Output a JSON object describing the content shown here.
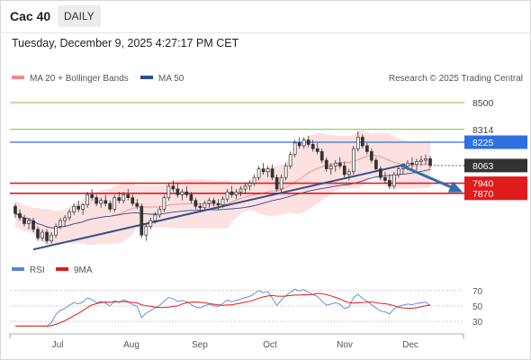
{
  "header": {
    "title": "Cac 40",
    "period": "DAILY",
    "timestamp": "Tuesday, December 9, 2025 4:27:17 PM CET"
  },
  "chart_data": {
    "type": "candlestick",
    "price": {
      "legend": [
        {
          "label": "MA 20 + Bollinger Bands",
          "color": "#f08a8a"
        },
        {
          "label": "MA 50",
          "color": "#2f4f8f"
        }
      ],
      "credit": "Research © 2025 Trading Central",
      "x_months": [
        "Jul",
        "Aug",
        "Sep",
        "Oct",
        "Nov",
        "Dec"
      ],
      "levels": [
        {
          "label": "8500",
          "value": 8500,
          "style": "resistance",
          "color": "#7bbf3f"
        },
        {
          "label": "8314",
          "value": 8314,
          "style": "resistance",
          "color": "#7bbf3f"
        },
        {
          "label": "8225",
          "value": 8225,
          "style": "pivot",
          "color": "#2f6fe0"
        },
        {
          "label": "8063",
          "value": 8063,
          "style": "last",
          "color": "#333333"
        },
        {
          "label": "7940",
          "value": 7940,
          "style": "support",
          "color": "#e01b1b"
        },
        {
          "label": "7870",
          "value": 7870,
          "style": "support",
          "color": "#e01b1b"
        }
      ],
      "trend_line": [
        [
          0,
          7480
        ],
        [
          94,
          8070
        ]
      ],
      "forecast_arrow": [
        [
          93,
          8063
        ],
        [
          100,
          7900
        ]
      ],
      "ohlc": [
        [
          7780,
          7800,
          7700,
          7730
        ],
        [
          7730,
          7760,
          7680,
          7700
        ],
        [
          7700,
          7720,
          7640,
          7660
        ],
        [
          7660,
          7700,
          7620,
          7680
        ],
        [
          7680,
          7700,
          7600,
          7620
        ],
        [
          7620,
          7640,
          7540,
          7560
        ],
        [
          7560,
          7620,
          7540,
          7600
        ],
        [
          7600,
          7620,
          7520,
          7540
        ],
        [
          7540,
          7600,
          7520,
          7580
        ],
        [
          7580,
          7660,
          7560,
          7640
        ],
        [
          7640,
          7700,
          7620,
          7680
        ],
        [
          7680,
          7720,
          7640,
          7700
        ],
        [
          7700,
          7760,
          7680,
          7740
        ],
        [
          7740,
          7800,
          7720,
          7780
        ],
        [
          7780,
          7820,
          7740,
          7760
        ],
        [
          7760,
          7800,
          7720,
          7790
        ],
        [
          7790,
          7880,
          7770,
          7860
        ],
        [
          7860,
          7900,
          7820,
          7840
        ],
        [
          7840,
          7860,
          7780,
          7800
        ],
        [
          7800,
          7840,
          7770,
          7820
        ],
        [
          7820,
          7860,
          7780,
          7800
        ],
        [
          7800,
          7820,
          7740,
          7760
        ],
        [
          7760,
          7860,
          7740,
          7840
        ],
        [
          7840,
          7880,
          7800,
          7820
        ],
        [
          7820,
          7880,
          7800,
          7860
        ],
        [
          7860,
          7900,
          7820,
          7840
        ],
        [
          7840,
          7860,
          7780,
          7800
        ],
        [
          7800,
          7830,
          7760,
          7780
        ],
        [
          7780,
          7800,
          7560,
          7580
        ],
        [
          7580,
          7660,
          7540,
          7640
        ],
        [
          7640,
          7700,
          7620,
          7680
        ],
        [
          7680,
          7740,
          7660,
          7720
        ],
        [
          7720,
          7780,
          7700,
          7760
        ],
        [
          7760,
          7860,
          7740,
          7840
        ],
        [
          7840,
          7940,
          7820,
          7920
        ],
        [
          7920,
          7960,
          7880,
          7900
        ],
        [
          7900,
          7940,
          7840,
          7860
        ],
        [
          7860,
          7900,
          7820,
          7880
        ],
        [
          7880,
          7920,
          7840,
          7860
        ],
        [
          7860,
          7880,
          7800,
          7820
        ],
        [
          7820,
          7840,
          7760,
          7780
        ],
        [
          7780,
          7800,
          7740,
          7770
        ],
        [
          7770,
          7820,
          7750,
          7800
        ],
        [
          7800,
          7840,
          7770,
          7820
        ],
        [
          7820,
          7840,
          7780,
          7800
        ],
        [
          7800,
          7830,
          7760,
          7790
        ],
        [
          7790,
          7850,
          7770,
          7830
        ],
        [
          7830,
          7900,
          7810,
          7880
        ],
        [
          7880,
          7920,
          7840,
          7860
        ],
        [
          7860,
          7900,
          7830,
          7880
        ],
        [
          7880,
          7920,
          7850,
          7900
        ],
        [
          7900,
          7940,
          7870,
          7920
        ],
        [
          7920,
          7960,
          7890,
          7940
        ],
        [
          7940,
          8000,
          7920,
          7980
        ],
        [
          7980,
          8060,
          7960,
          8040
        ],
        [
          8040,
          8080,
          8000,
          8020
        ],
        [
          8020,
          8060,
          7980,
          8040
        ],
        [
          8040,
          8070,
          7960,
          7980
        ],
        [
          7980,
          8000,
          7880,
          7900
        ],
        [
          7900,
          8000,
          7880,
          7980
        ],
        [
          7980,
          8080,
          7960,
          8060
        ],
        [
          8060,
          8160,
          8040,
          8140
        ],
        [
          8140,
          8240,
          8120,
          8220
        ],
        [
          8220,
          8260,
          8180,
          8200
        ],
        [
          8200,
          8260,
          8180,
          8240
        ],
        [
          8240,
          8270,
          8190,
          8210
        ],
        [
          8210,
          8240,
          8160,
          8180
        ],
        [
          8180,
          8220,
          8140,
          8160
        ],
        [
          8160,
          8180,
          8080,
          8100
        ],
        [
          8100,
          8120,
          8020,
          8040
        ],
        [
          8040,
          8080,
          8000,
          8060
        ],
        [
          8060,
          8100,
          8020,
          8080
        ],
        [
          8080,
          8120,
          8040,
          8060
        ],
        [
          8060,
          8090,
          7980,
          8000
        ],
        [
          8000,
          8040,
          7960,
          8020
        ],
        [
          8020,
          8200,
          8000,
          8180
        ],
        [
          8180,
          8300,
          8160,
          8260
        ],
        [
          8260,
          8280,
          8180,
          8200
        ],
        [
          8200,
          8220,
          8140,
          8160
        ],
        [
          8160,
          8180,
          8080,
          8100
        ],
        [
          8100,
          8120,
          8020,
          8040
        ],
        [
          8040,
          8060,
          7960,
          7980
        ],
        [
          7980,
          8020,
          7940,
          7960
        ],
        [
          7960,
          8000,
          7900,
          7920
        ],
        [
          7920,
          8020,
          7900,
          8000
        ],
        [
          8000,
          8060,
          7980,
          8040
        ],
        [
          8040,
          8080,
          8000,
          8060
        ],
        [
          8060,
          8100,
          8030,
          8080
        ],
        [
          8080,
          8120,
          8040,
          8070
        ],
        [
          8070,
          8110,
          8030,
          8090
        ],
        [
          8090,
          8130,
          8060,
          8100
        ],
        [
          8100,
          8140,
          8070,
          8110
        ],
        [
          8110,
          8130,
          8040,
          8063
        ]
      ],
      "ylim": [
        7450,
        8600
      ]
    },
    "rsi": {
      "legend": [
        {
          "label": "RSI",
          "color": "#5b84d6"
        },
        {
          "label": "9MA",
          "color": "#e01b1b"
        }
      ],
      "ticks": [
        "70",
        "50",
        "30"
      ],
      "ylim": [
        22,
        78
      ]
    }
  }
}
